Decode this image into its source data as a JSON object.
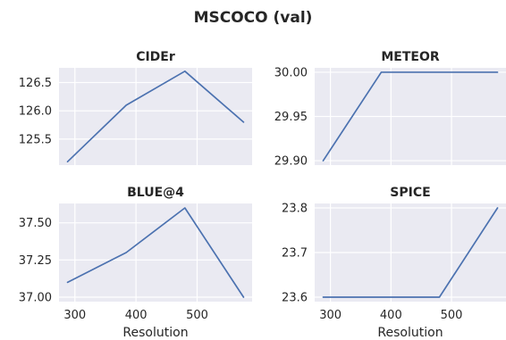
{
  "figure": {
    "title": "MSCOCO (val)",
    "xlabel": "Resolution"
  },
  "colors": {
    "series": "#4c72b0",
    "panel": "#eaeaf2",
    "grid": "#ffffff"
  },
  "chart_data": [
    {
      "type": "line",
      "title": "CIDEr",
      "x": [
        288,
        384,
        480,
        576
      ],
      "y": [
        125.1,
        126.1,
        126.7,
        125.8
      ],
      "xlim": [
        274,
        590
      ],
      "ylim": [
        125.04,
        126.76
      ],
      "xticks": [
        300,
        400,
        500
      ],
      "xtick_labels": [],
      "yticks": [
        125.5,
        126.0,
        126.5
      ],
      "ytick_labels": [
        "125.5",
        "126.0",
        "126.5"
      ],
      "xlabel": "",
      "grid": true
    },
    {
      "type": "line",
      "title": "METEOR",
      "x": [
        288,
        384,
        480,
        576
      ],
      "y": [
        29.9,
        30.0,
        30.0,
        30.0
      ],
      "xlim": [
        274,
        590
      ],
      "ylim": [
        29.895,
        30.005
      ],
      "xticks": [
        300,
        400,
        500
      ],
      "xtick_labels": [],
      "yticks": [
        29.9,
        29.95,
        30.0
      ],
      "ytick_labels": [
        "29.90",
        "29.95",
        "30.00"
      ],
      "xlabel": "",
      "grid": true
    },
    {
      "type": "line",
      "title": "BLUE@4",
      "x": [
        288,
        384,
        480,
        576
      ],
      "y": [
        37.1,
        37.3,
        37.6,
        37.0
      ],
      "xlim": [
        274,
        590
      ],
      "ylim": [
        36.97,
        37.63
      ],
      "xticks": [
        300,
        400,
        500
      ],
      "xtick_labels": [
        "300",
        "400",
        "500"
      ],
      "yticks": [
        37.0,
        37.25,
        37.5
      ],
      "ytick_labels": [
        "37.00",
        "37.25",
        "37.50"
      ],
      "xlabel": "Resolution",
      "grid": true
    },
    {
      "type": "line",
      "title": "SPICE",
      "x": [
        288,
        384,
        480,
        576
      ],
      "y": [
        23.6,
        23.6,
        23.6,
        23.8
      ],
      "xlim": [
        274,
        590
      ],
      "ylim": [
        23.59,
        23.81
      ],
      "xticks": [
        300,
        400,
        500
      ],
      "xtick_labels": [
        "300",
        "400",
        "500"
      ],
      "yticks": [
        23.6,
        23.7,
        23.8
      ],
      "ytick_labels": [
        "23.6",
        "23.7",
        "23.8"
      ],
      "xlabel": "Resolution",
      "grid": true
    }
  ]
}
